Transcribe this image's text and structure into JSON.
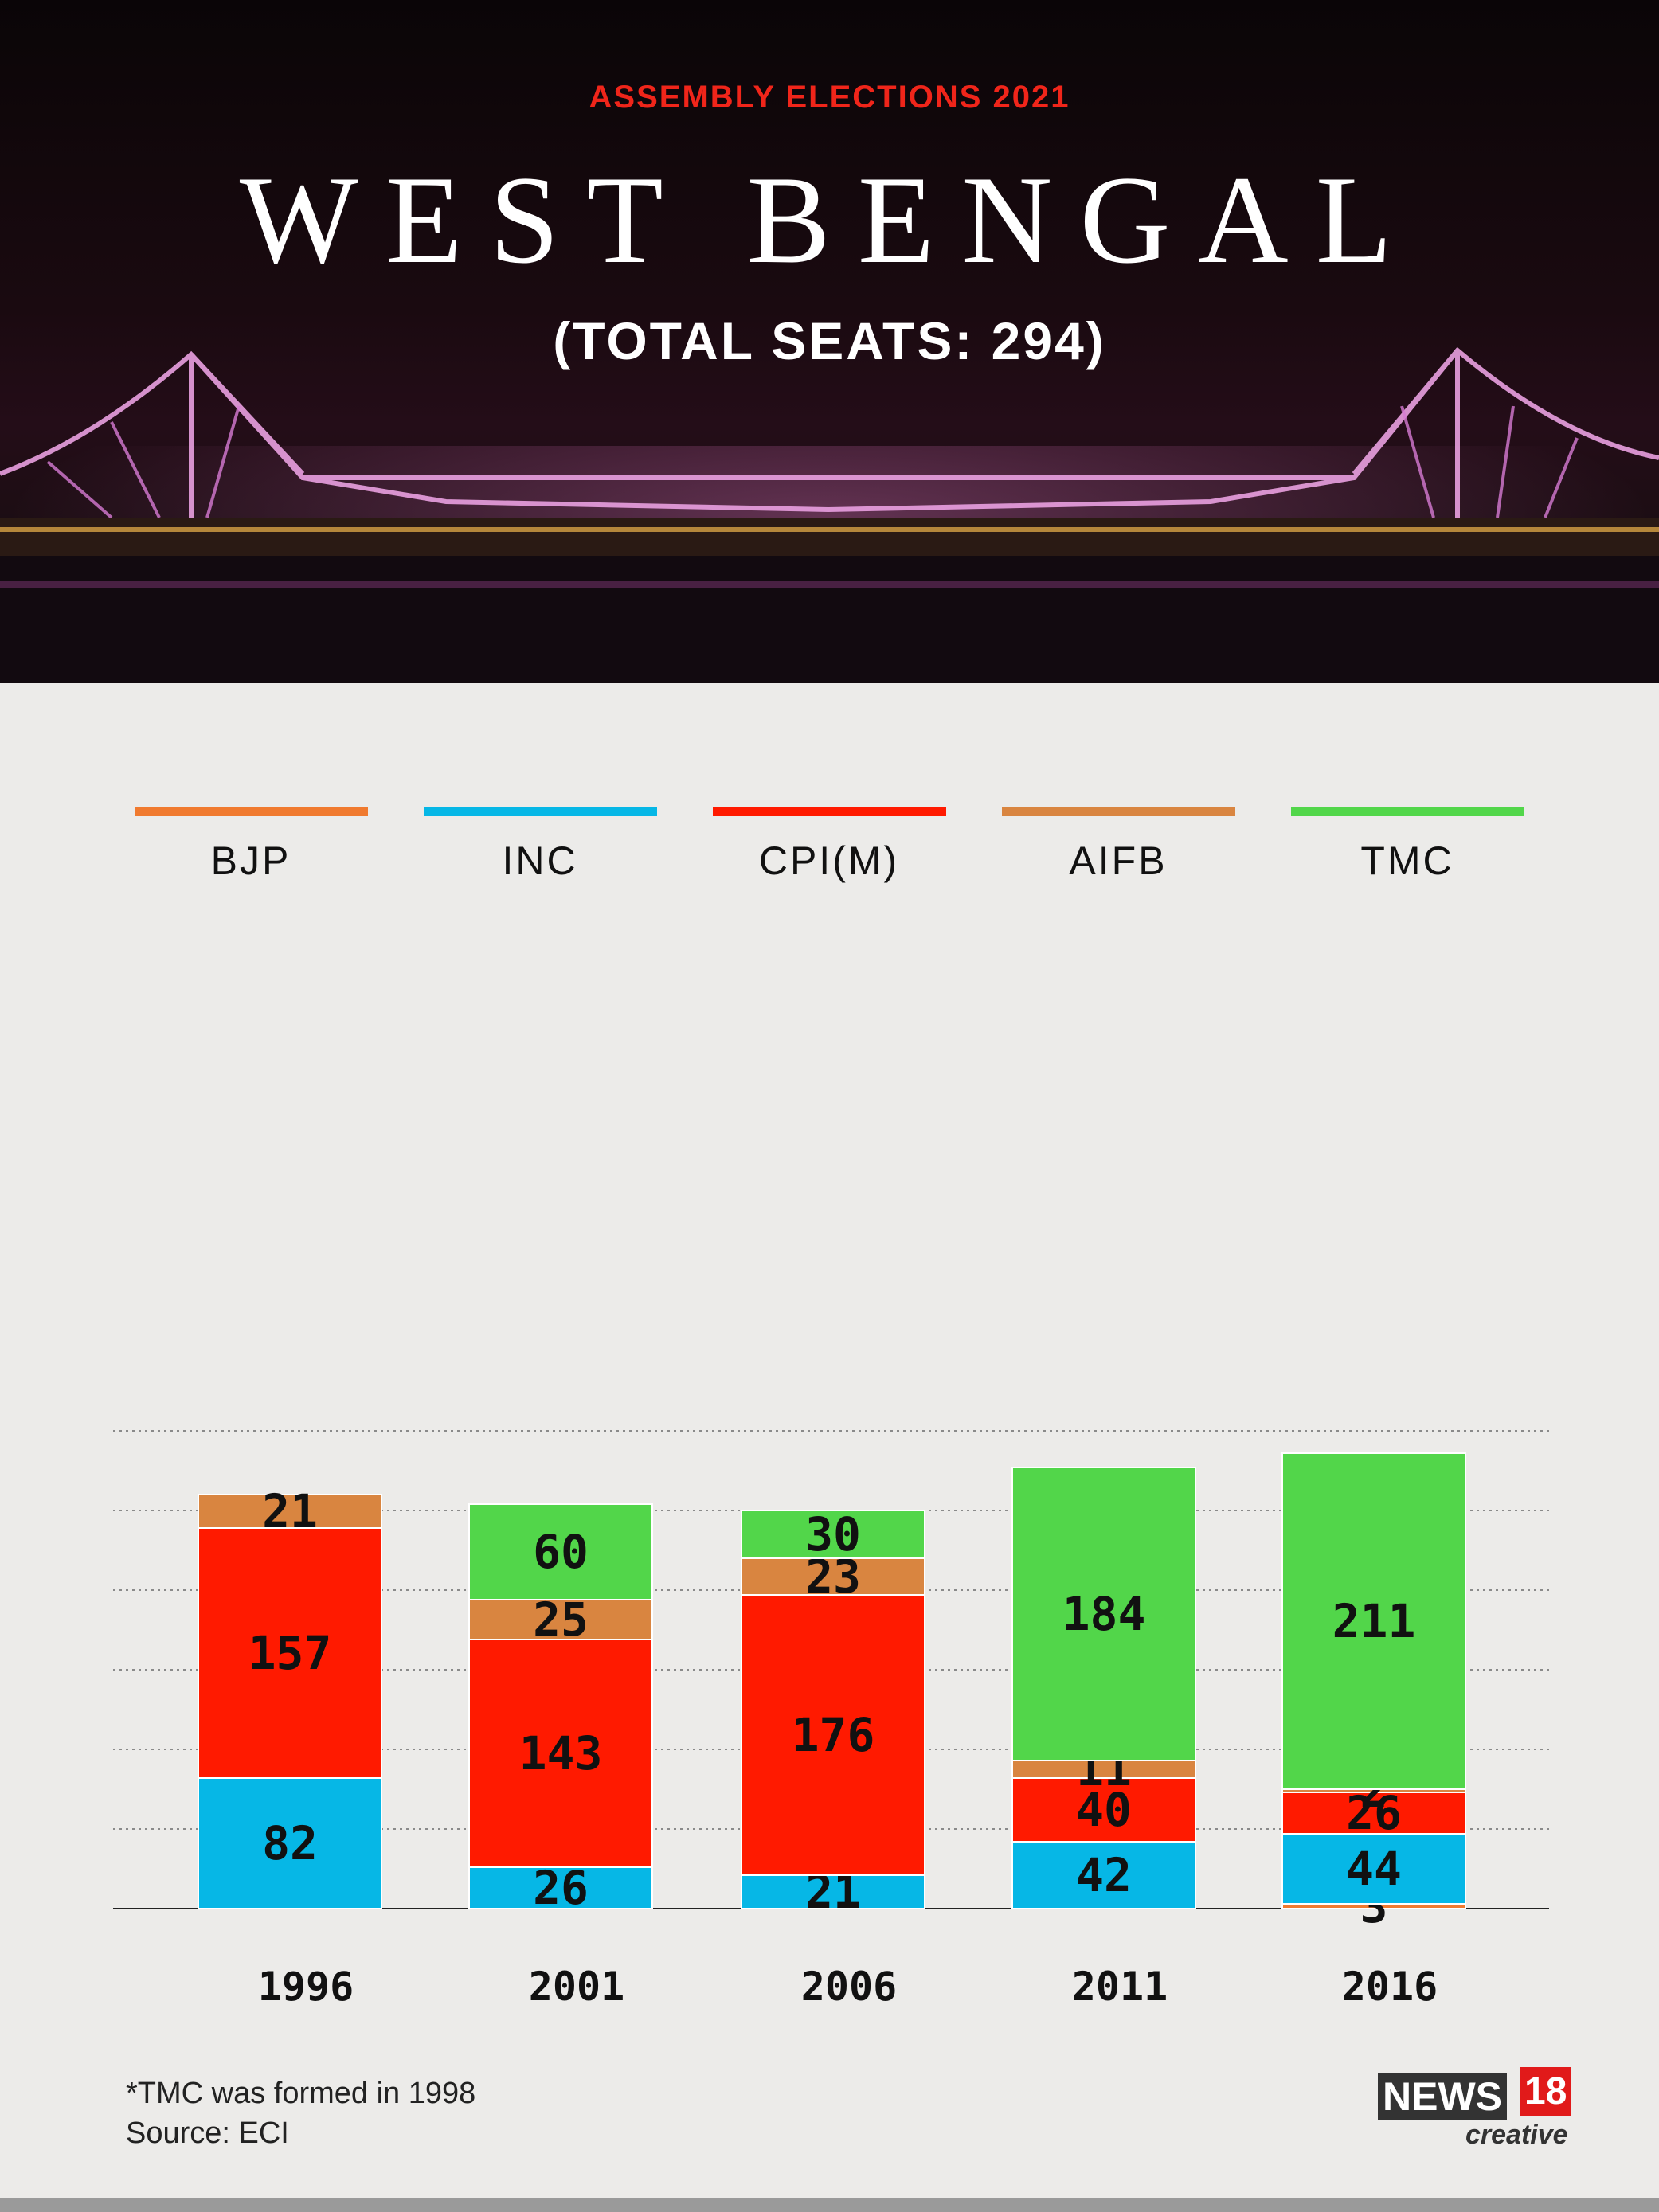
{
  "header": {
    "kicker": "ASSEMBLY ELECTIONS 2021",
    "title": "WEST BENGAL",
    "subtitle": "(TOTAL SEATS: 294)"
  },
  "legend": [
    {
      "name": "BJP",
      "color": "#f07a2f"
    },
    {
      "name": "INC",
      "color": "#06b7e6"
    },
    {
      "name": "CPI(M)",
      "color": "#ff1a00"
    },
    {
      "name": "AIFB",
      "color": "#d98540"
    },
    {
      "name": "TMC",
      "color": "#52d64a"
    }
  ],
  "chart_data": {
    "type": "bar",
    "stacked": true,
    "categories": [
      "1996",
      "2001",
      "2006",
      "2011",
      "2016"
    ],
    "series": [
      {
        "name": "BJP",
        "color": "#f07a2f",
        "values": [
          0,
          0,
          0,
          0,
          3
        ]
      },
      {
        "name": "INC",
        "color": "#06b7e6",
        "values": [
          82,
          26,
          21,
          42,
          44
        ]
      },
      {
        "name": "CPI(M)",
        "color": "#ff1a00",
        "values": [
          157,
          143,
          176,
          40,
          26
        ]
      },
      {
        "name": "AIFB",
        "color": "#d98540",
        "values": [
          21,
          25,
          23,
          11,
          2
        ]
      },
      {
        "name": "TMC",
        "color": "#52d64a",
        "values": [
          0,
          60,
          30,
          184,
          211
        ]
      }
    ],
    "ylim": [
      0,
      300
    ],
    "gridlines": [
      50,
      100,
      150,
      200,
      250,
      300
    ],
    "grid": true,
    "legend_position": "top"
  },
  "footnote": {
    "note": "*TMC was formed in 1998",
    "source": "Source: ECI"
  },
  "logo": {
    "news": "NEWS",
    "number": "18",
    "creative": "creative"
  }
}
